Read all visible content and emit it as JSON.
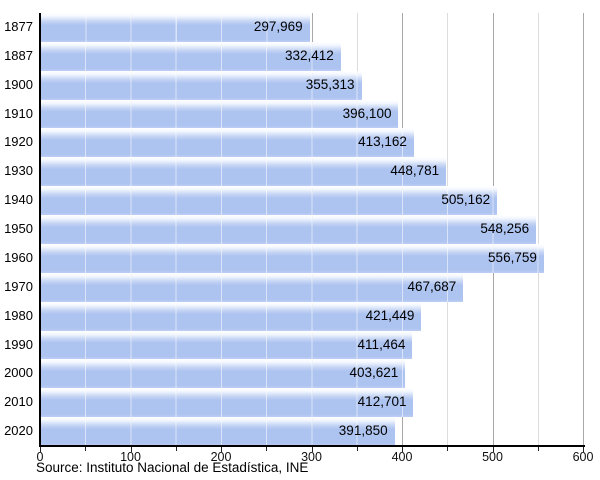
{
  "chart_data": {
    "type": "bar",
    "orientation": "horizontal",
    "title": "",
    "xlabel": "",
    "ylabel": "",
    "categories": [
      "1877",
      "1887",
      "1900",
      "1910",
      "1920",
      "1930",
      "1940",
      "1950",
      "1960",
      "1970",
      "1980",
      "1990",
      "2000",
      "2010",
      "2020"
    ],
    "values": [
      297969,
      332412,
      355313,
      396100,
      413162,
      448781,
      505162,
      548256,
      556759,
      467687,
      421449,
      411464,
      403621,
      412701,
      391850
    ],
    "value_labels": [
      "297,969",
      "332,412",
      "355,313",
      "396,100",
      "413,162",
      "448,781",
      "505,162",
      "548,256",
      "556,759",
      "467,687",
      "421,449",
      "411,464",
      "403,621",
      "412,701",
      "391,850"
    ],
    "x_axis": {
      "min": 0,
      "max": 600,
      "unit": "thousands",
      "major_tick_step": 100,
      "minor_tick_step": 50,
      "tick_labels": [
        "0",
        "100",
        "200",
        "300",
        "400",
        "500",
        "600"
      ]
    },
    "grid": {
      "vertical": true,
      "minor_color": "#dcdcdc",
      "major_color": "#a8a8a8"
    },
    "legend": "none",
    "bar_color": "#adc3f0",
    "bar_highlight_color": "#ffffff",
    "axis_color": "#000000",
    "text_color": "#000000",
    "source": "Source: Instituto Nacional de Estadística, INE"
  }
}
